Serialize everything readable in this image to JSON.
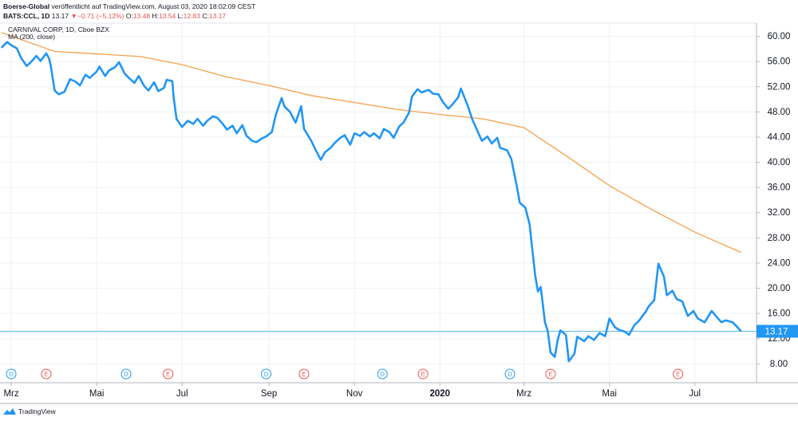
{
  "header": {
    "line1": {
      "publisher": "Boerse-Global",
      "text": "veröffentlicht auf TradingView.com, August 03, 2020 18:02:09 CEST"
    },
    "line2": {
      "symbol": "BATS:CCL, 1D",
      "last": "13.17",
      "arrow": "▼",
      "change": "−0.71 (−5.12%)",
      "o_label": "O:",
      "o": "13.48",
      "h_label": "H:",
      "h": "13.54",
      "l_label": "L:",
      "l": "12.83",
      "c_label": "C:",
      "c": "13.17"
    }
  },
  "legend": {
    "title": "CARNIVAL CORP, 1D, Cboe BZX",
    "indicator": "MA (200, close)"
  },
  "footer": {
    "brand": "TradingView"
  },
  "colors": {
    "price": "#2196f3",
    "ma": "#f5a04a",
    "last_line": "#61b8e6",
    "label_bg": "#2196f3",
    "grid": "#eef0f3",
    "border": "#b2b5be"
  },
  "chart_data": {
    "type": "line",
    "title": "CARNIVAL CORP, 1D, Cboe BZX",
    "x_axis": {
      "type": "date",
      "range": [
        "2019-02-21",
        "2020-08-14"
      ],
      "tick_labels": [
        {
          "date": "2019-03-01",
          "label": "Mrz"
        },
        {
          "date": "2019-05-01",
          "label": "Mai"
        },
        {
          "date": "2019-07-01",
          "label": "Jul"
        },
        {
          "date": "2019-09-01",
          "label": "Sep"
        },
        {
          "date": "2019-11-01",
          "label": "Nov"
        },
        {
          "date": "2020-01-01",
          "label": "2020",
          "bold": true
        },
        {
          "date": "2020-03-01",
          "label": "Mrz"
        },
        {
          "date": "2020-05-01",
          "label": "Mai"
        },
        {
          "date": "2020-07-01",
          "label": "Jul"
        }
      ]
    },
    "y_axis": {
      "range": [
        5.0,
        62.1
      ],
      "ticks": [
        8,
        12,
        16,
        20,
        24,
        28,
        32,
        36,
        40,
        44,
        48,
        52,
        56,
        60
      ],
      "tick_labels": [
        "8.00",
        "12.00",
        "16.00",
        "20.00",
        "24.00",
        "28.00",
        "32.00",
        "36.00",
        "40.00",
        "44.00",
        "48.00",
        "52.00",
        "56.00",
        "60.00"
      ]
    },
    "grid": true,
    "last_value": 13.17,
    "last_label": "13.17",
    "series": [
      {
        "name": "CARNIVAL CORP",
        "points": [
          [
            "2019-02-22",
            58.2
          ],
          [
            "2019-02-26",
            59.1
          ],
          [
            "2019-03-01",
            58.6
          ],
          [
            "2019-03-05",
            58.1
          ],
          [
            "2019-03-08",
            56.6
          ],
          [
            "2019-03-12",
            55.3
          ],
          [
            "2019-03-15",
            55.9
          ],
          [
            "2019-03-19",
            56.9
          ],
          [
            "2019-03-22",
            56.1
          ],
          [
            "2019-03-26",
            57.3
          ],
          [
            "2019-03-28",
            56.5
          ],
          [
            "2019-03-29",
            55.6
          ],
          [
            "2019-04-01",
            51.4
          ],
          [
            "2019-04-04",
            50.8
          ],
          [
            "2019-04-08",
            51.2
          ],
          [
            "2019-04-12",
            53.2
          ],
          [
            "2019-04-16",
            52.8
          ],
          [
            "2019-04-19",
            52.2
          ],
          [
            "2019-04-23",
            53.9
          ],
          [
            "2019-04-26",
            53.4
          ],
          [
            "2019-05-01",
            54.4
          ],
          [
            "2019-05-03",
            55.2
          ],
          [
            "2019-05-07",
            53.7
          ],
          [
            "2019-05-10",
            54.6
          ],
          [
            "2019-05-14",
            55.1
          ],
          [
            "2019-05-17",
            55.9
          ],
          [
            "2019-05-21",
            54.1
          ],
          [
            "2019-05-24",
            53.4
          ],
          [
            "2019-05-28",
            52.6
          ],
          [
            "2019-05-31",
            53.7
          ],
          [
            "2019-06-04",
            52.1
          ],
          [
            "2019-06-07",
            51.4
          ],
          [
            "2019-06-11",
            52.7
          ],
          [
            "2019-06-14",
            51.3
          ],
          [
            "2019-06-18",
            51.8
          ],
          [
            "2019-06-20",
            53.1
          ],
          [
            "2019-06-24",
            52.9
          ],
          [
            "2019-06-25",
            50.2
          ],
          [
            "2019-06-27",
            46.9
          ],
          [
            "2019-07-01",
            45.6
          ],
          [
            "2019-07-05",
            46.6
          ],
          [
            "2019-07-09",
            46.1
          ],
          [
            "2019-07-12",
            46.9
          ],
          [
            "2019-07-16",
            45.8
          ],
          [
            "2019-07-19",
            46.6
          ],
          [
            "2019-07-23",
            47.3
          ],
          [
            "2019-07-26",
            47.1
          ],
          [
            "2019-07-30",
            46.1
          ],
          [
            "2019-08-02",
            45.2
          ],
          [
            "2019-08-06",
            45.8
          ],
          [
            "2019-08-09",
            44.6
          ],
          [
            "2019-08-13",
            45.9
          ],
          [
            "2019-08-16",
            44.2
          ],
          [
            "2019-08-20",
            43.4
          ],
          [
            "2019-08-23",
            43.2
          ],
          [
            "2019-08-27",
            43.8
          ],
          [
            "2019-08-30",
            44.1
          ],
          [
            "2019-09-03",
            44.8
          ],
          [
            "2019-09-06",
            47.6
          ],
          [
            "2019-09-10",
            50.2
          ],
          [
            "2019-09-12",
            48.9
          ],
          [
            "2019-09-16",
            48.0
          ],
          [
            "2019-09-20",
            46.3
          ],
          [
            "2019-09-24",
            48.9
          ],
          [
            "2019-09-26",
            45.3
          ],
          [
            "2019-10-01",
            43.5
          ],
          [
            "2019-10-04",
            42.1
          ],
          [
            "2019-10-08",
            40.4
          ],
          [
            "2019-10-11",
            41.6
          ],
          [
            "2019-10-15",
            42.3
          ],
          [
            "2019-10-18",
            43.1
          ],
          [
            "2019-10-22",
            43.9
          ],
          [
            "2019-10-25",
            44.3
          ],
          [
            "2019-10-29",
            42.8
          ],
          [
            "2019-11-01",
            44.6
          ],
          [
            "2019-11-05",
            44.2
          ],
          [
            "2019-11-08",
            44.8
          ],
          [
            "2019-11-12",
            44.1
          ],
          [
            "2019-11-15",
            44.6
          ],
          [
            "2019-11-19",
            43.8
          ],
          [
            "2019-11-22",
            45.3
          ],
          [
            "2019-11-26",
            44.8
          ],
          [
            "2019-11-29",
            43.9
          ],
          [
            "2019-12-03",
            45.7
          ],
          [
            "2019-12-06",
            46.3
          ],
          [
            "2019-12-10",
            47.9
          ],
          [
            "2019-12-12",
            50.4
          ],
          [
            "2019-12-16",
            51.6
          ],
          [
            "2019-12-19",
            51.1
          ],
          [
            "2019-12-24",
            51.5
          ],
          [
            "2019-12-27",
            50.9
          ],
          [
            "2019-12-31",
            50.8
          ],
          [
            "2020-01-03",
            49.6
          ],
          [
            "2020-01-07",
            48.5
          ],
          [
            "2020-01-10",
            49.2
          ],
          [
            "2020-01-14",
            50.3
          ],
          [
            "2020-01-16",
            51.7
          ],
          [
            "2020-01-21",
            48.9
          ],
          [
            "2020-01-24",
            46.9
          ],
          [
            "2020-01-28",
            44.9
          ],
          [
            "2020-01-31",
            43.4
          ],
          [
            "2020-02-04",
            44.1
          ],
          [
            "2020-02-07",
            43.0
          ],
          [
            "2020-02-11",
            43.9
          ],
          [
            "2020-02-13",
            42.3
          ],
          [
            "2020-02-18",
            41.9
          ],
          [
            "2020-02-21",
            40.5
          ],
          [
            "2020-02-25",
            36.1
          ],
          [
            "2020-02-27",
            33.6
          ],
          [
            "2020-03-02",
            32.8
          ],
          [
            "2020-03-05",
            30.2
          ],
          [
            "2020-03-09",
            22.1
          ],
          [
            "2020-03-11",
            19.5
          ],
          [
            "2020-03-13",
            20.2
          ],
          [
            "2020-03-16",
            14.6
          ],
          [
            "2020-03-18",
            13.2
          ],
          [
            "2020-03-20",
            9.8
          ],
          [
            "2020-03-23",
            9.1
          ],
          [
            "2020-03-25",
            11.7
          ],
          [
            "2020-03-27",
            13.3
          ],
          [
            "2020-03-31",
            12.6
          ],
          [
            "2020-04-02",
            8.4
          ],
          [
            "2020-04-06",
            9.6
          ],
          [
            "2020-04-08",
            12.3
          ],
          [
            "2020-04-13",
            11.6
          ],
          [
            "2020-04-16",
            12.4
          ],
          [
            "2020-04-20",
            11.8
          ],
          [
            "2020-04-24",
            12.9
          ],
          [
            "2020-04-28",
            12.4
          ],
          [
            "2020-05-01",
            15.2
          ],
          [
            "2020-05-05",
            13.8
          ],
          [
            "2020-05-08",
            13.4
          ],
          [
            "2020-05-12",
            13.1
          ],
          [
            "2020-05-15",
            12.6
          ],
          [
            "2020-05-19",
            14.2
          ],
          [
            "2020-05-22",
            14.8
          ],
          [
            "2020-05-27",
            16.3
          ],
          [
            "2020-05-29",
            17.1
          ],
          [
            "2020-06-02",
            18.1
          ],
          [
            "2020-06-05",
            23.9
          ],
          [
            "2020-06-09",
            21.8
          ],
          [
            "2020-06-11",
            18.9
          ],
          [
            "2020-06-15",
            19.6
          ],
          [
            "2020-06-18",
            18.3
          ],
          [
            "2020-06-22",
            17.9
          ],
          [
            "2020-06-26",
            15.6
          ],
          [
            "2020-06-30",
            16.4
          ],
          [
            "2020-07-03",
            15.2
          ],
          [
            "2020-07-08",
            14.6
          ],
          [
            "2020-07-13",
            16.4
          ],
          [
            "2020-07-16",
            15.6
          ],
          [
            "2020-07-20",
            14.6
          ],
          [
            "2020-07-23",
            14.9
          ],
          [
            "2020-07-28",
            14.6
          ],
          [
            "2020-07-31",
            13.9
          ],
          [
            "2020-08-03",
            13.17
          ]
        ]
      },
      {
        "name": "MA (200, close)",
        "points": [
          [
            "2019-02-22",
            60.6
          ],
          [
            "2019-04-01",
            57.6
          ],
          [
            "2019-06-01",
            56.8
          ],
          [
            "2019-07-01",
            55.5
          ],
          [
            "2019-08-01",
            53.6
          ],
          [
            "2019-09-01",
            52.2
          ],
          [
            "2019-10-01",
            50.6
          ],
          [
            "2019-11-01",
            49.5
          ],
          [
            "2019-12-01",
            48.4
          ],
          [
            "2020-01-01",
            47.6
          ],
          [
            "2020-02-01",
            46.9
          ],
          [
            "2020-03-01",
            45.5
          ],
          [
            "2020-04-01",
            40.9
          ],
          [
            "2020-05-01",
            36.3
          ],
          [
            "2020-06-01",
            32.4
          ],
          [
            "2020-07-01",
            28.9
          ],
          [
            "2020-08-03",
            25.7
          ]
        ]
      }
    ],
    "event_markers": [
      {
        "date": "2019-03-01",
        "label": "D",
        "kind": "dividend"
      },
      {
        "date": "2019-03-26",
        "label": "E",
        "kind": "earnings"
      },
      {
        "date": "2019-05-22",
        "label": "D",
        "kind": "dividend"
      },
      {
        "date": "2019-06-21",
        "label": "E",
        "kind": "earnings"
      },
      {
        "date": "2019-08-30",
        "label": "D",
        "kind": "dividend"
      },
      {
        "date": "2019-09-26",
        "label": "E",
        "kind": "earnings"
      },
      {
        "date": "2019-11-21",
        "label": "D",
        "kind": "dividend"
      },
      {
        "date": "2019-12-20",
        "label": "E",
        "kind": "earnings"
      },
      {
        "date": "2020-02-20",
        "label": "D",
        "kind": "dividend"
      },
      {
        "date": "2020-03-20",
        "label": "E",
        "kind": "earnings"
      },
      {
        "date": "2020-06-19",
        "label": "E",
        "kind": "earnings"
      }
    ]
  }
}
